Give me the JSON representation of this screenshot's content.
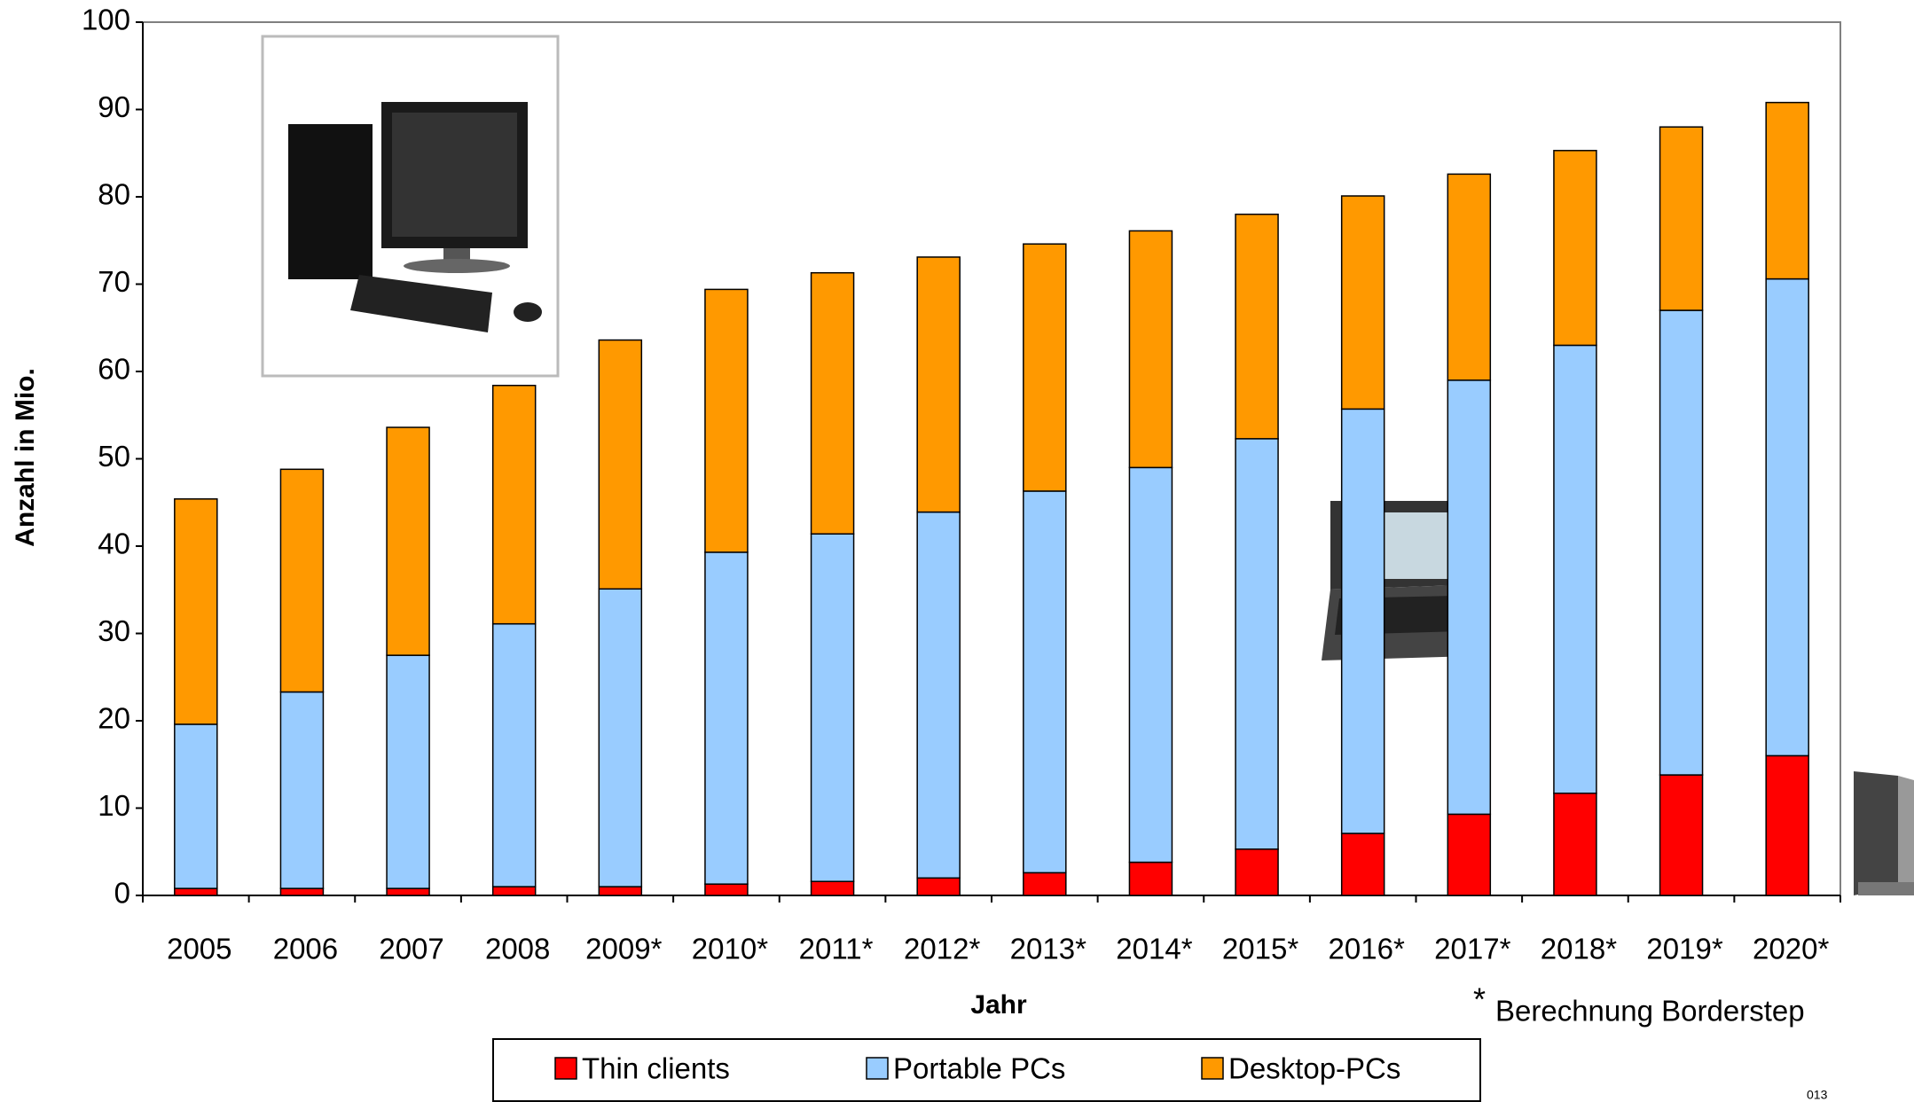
{
  "chart_data": {
    "type": "stacked-bar",
    "y_label": "Anzahl in Mio.",
    "x_label": "Jahr",
    "categories": [
      "2005",
      "2006",
      "2007",
      "2008",
      "2009*",
      "2010*",
      "2011*",
      "2012*",
      "2013*",
      "2014*",
      "2015*",
      "2016*",
      "2017*",
      "2018*",
      "2019*",
      "2020*"
    ],
    "series": [
      {
        "name": "Thin clients",
        "color": "#ff0000",
        "values": [
          0.8,
          0.8,
          0.8,
          1.0,
          1.0,
          1.3,
          1.6,
          2.0,
          2.6,
          3.8,
          5.3,
          7.1,
          9.3,
          11.7,
          13.8,
          16.0
        ]
      },
      {
        "name": "Portable PCs",
        "color": "#99ccff",
        "values": [
          18.8,
          22.5,
          26.7,
          30.1,
          34.1,
          38.0,
          39.8,
          41.9,
          43.7,
          45.2,
          47.0,
          48.6,
          49.7,
          51.3,
          53.2,
          54.6
        ]
      },
      {
        "name": "Desktop-PCs",
        "color": "#ff9900",
        "values": [
          25.8,
          25.5,
          26.1,
          27.3,
          28.5,
          30.1,
          29.9,
          29.2,
          28.3,
          27.1,
          25.7,
          24.4,
          23.6,
          22.3,
          21.0,
          20.2
        ]
      }
    ],
    "ylim": [
      0,
      100
    ],
    "yticks": [
      0,
      10,
      20,
      30,
      40,
      50,
      60,
      70,
      80,
      90,
      100
    ],
    "grid": false,
    "legend": "bottom",
    "footnote_symbol": "*",
    "footnote_text": "Berechnung Borderstep",
    "page_number": "013"
  }
}
